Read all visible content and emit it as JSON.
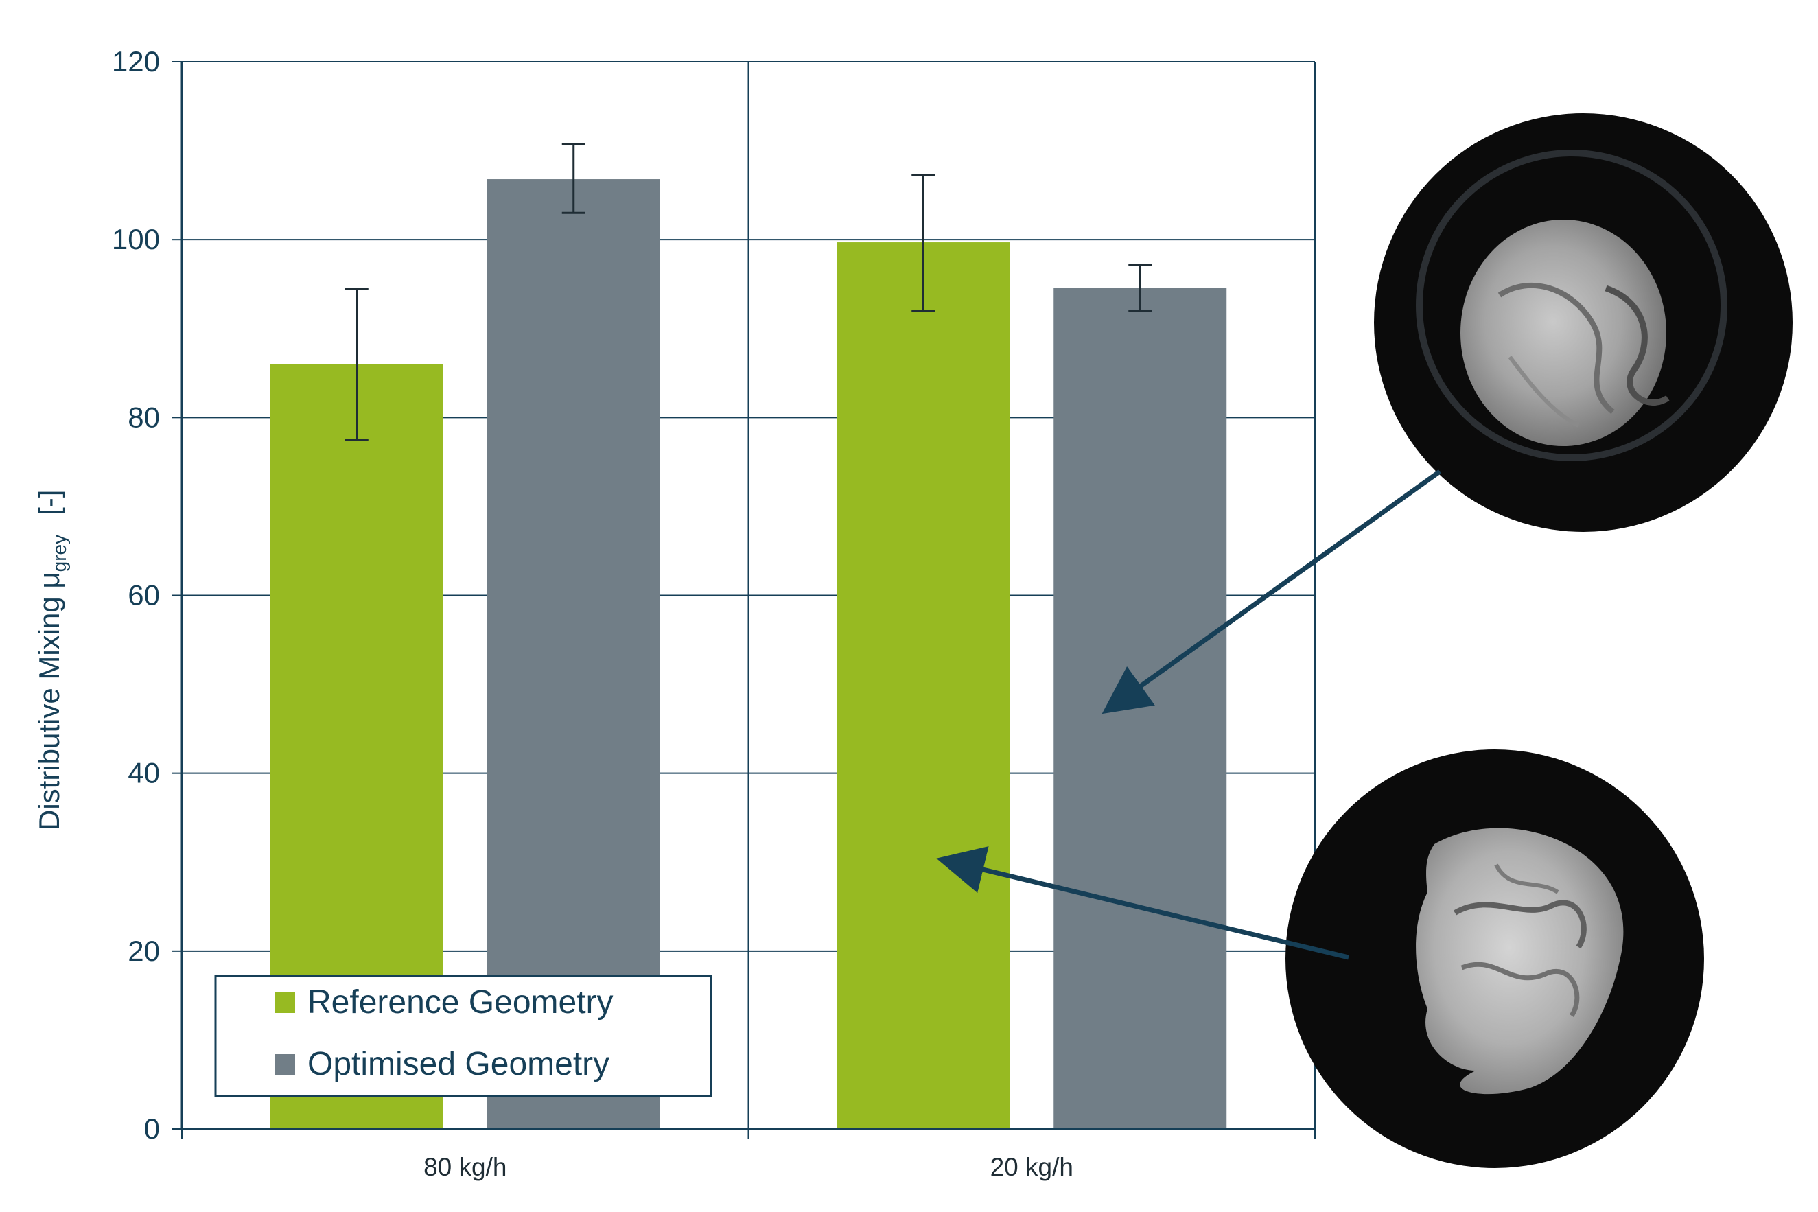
{
  "chart_data": {
    "type": "bar",
    "categories": [
      "80 kg/h",
      "20 kg/h"
    ],
    "series": [
      {
        "name": "Reference Geometry",
        "color": "#97ba22",
        "values": [
          86,
          99.7
        ],
        "error_low": [
          77.5,
          92
        ],
        "error_high": [
          94.5,
          107.3
        ]
      },
      {
        "name": "Optimised Geometry",
        "color": "#717e87",
        "values": [
          106.8,
          94.6
        ],
        "error_low": [
          103,
          92
        ],
        "error_high": [
          110.7,
          97.2
        ]
      }
    ],
    "ylabel": {
      "main": "Distributive Mixing μ",
      "sub": "grey",
      "unit": "[-]"
    },
    "ylim": [
      0,
      120
    ],
    "yticks": [
      0,
      20,
      40,
      60,
      80,
      100,
      120
    ],
    "grid": true,
    "legend_position": "bottom-left",
    "images": [
      {
        "name": "optimised-sample-image",
        "points_to": "Optimised Geometry, 20 kg/h"
      },
      {
        "name": "reference-sample-image",
        "points_to": "Reference Geometry, 20 kg/h"
      }
    ]
  }
}
